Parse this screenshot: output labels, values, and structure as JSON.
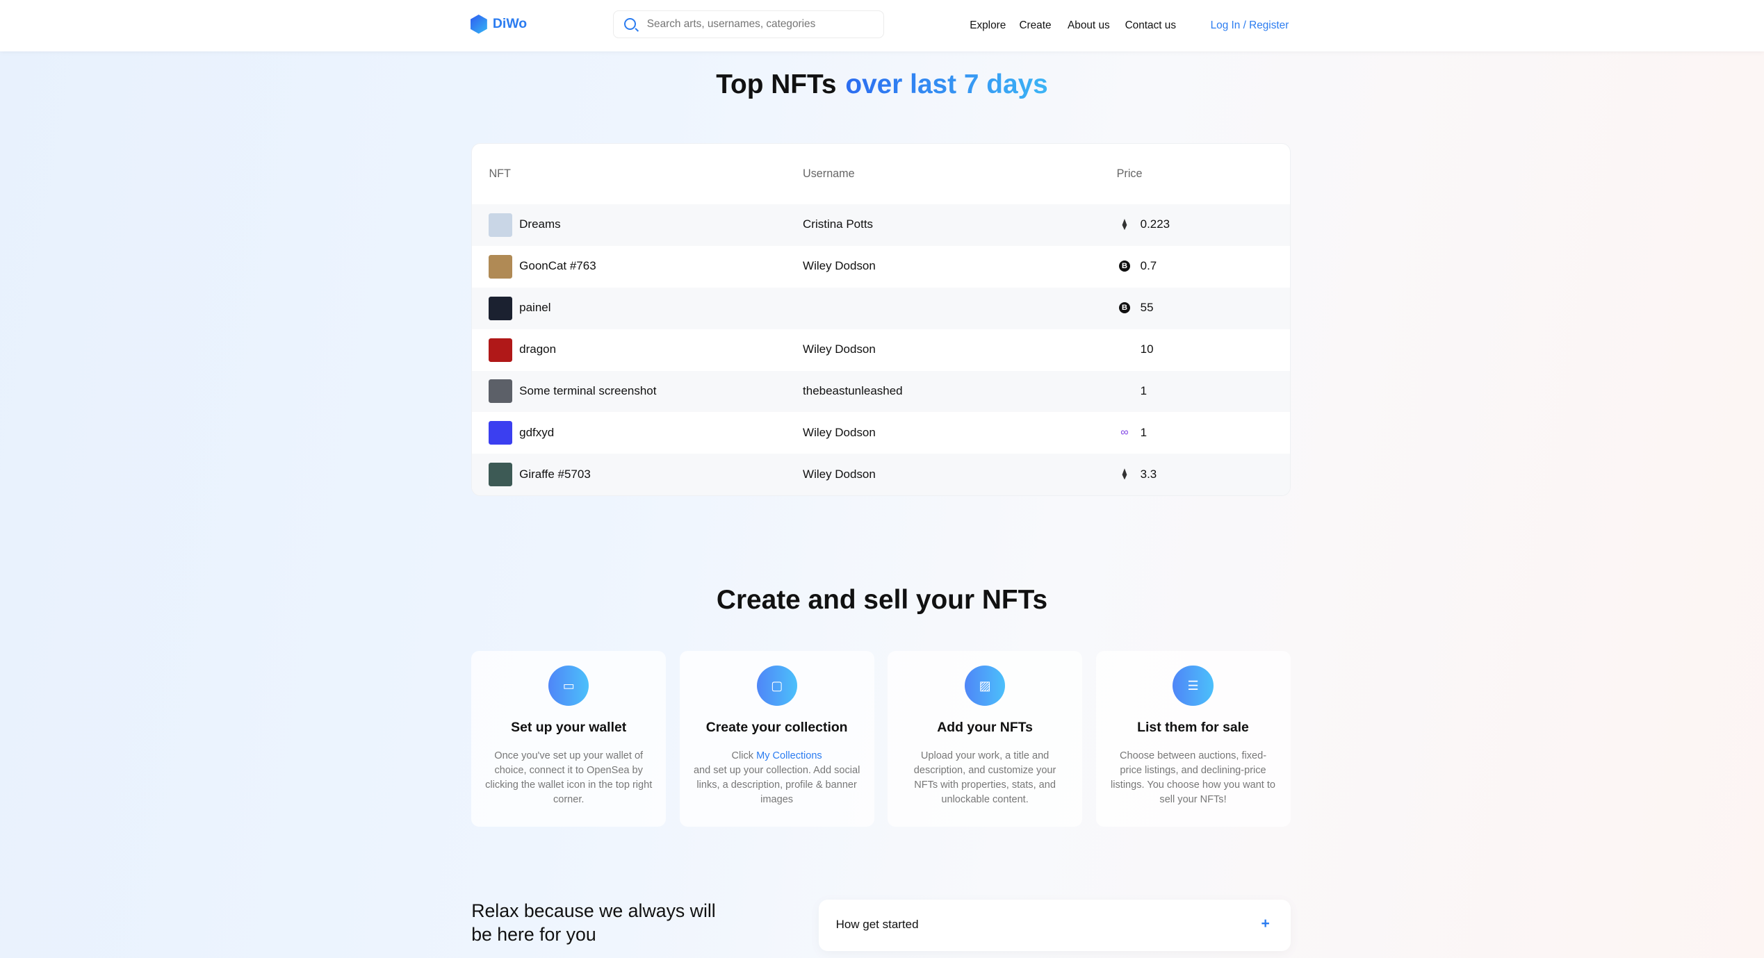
{
  "header": {
    "brand": "DiWo",
    "search_placeholder": "Search arts, usernames, categories",
    "nav": [
      "Explore",
      "Create",
      "About us",
      "Contact us"
    ],
    "login": "Log In / Register"
  },
  "hero": {
    "title": "Top NFTs",
    "highlight": "over last 7 days"
  },
  "table": {
    "columns": [
      "NFT",
      "Username",
      "Price"
    ],
    "rows": [
      {
        "nft": "Dreams",
        "username": "Cristina Potts",
        "price": "0.223",
        "currency": "eth-icon",
        "thumb": "#c9d6e6"
      },
      {
        "nft": "GoonCat #763",
        "username": "Wiley Dodson",
        "price": "0.7",
        "currency": "bitcoin-icon",
        "thumb": "#b08a55"
      },
      {
        "nft": "painel",
        "username": "",
        "price": "55",
        "currency": "bitcoin-icon",
        "thumb": "#1b2130"
      },
      {
        "nft": "dragon",
        "username": "Wiley Dodson",
        "price": "10",
        "currency": "",
        "thumb": "#b01818"
      },
      {
        "nft": "Some terminal screenshot",
        "username": "thebeastunleashed",
        "price": "1",
        "currency": "",
        "thumb": "#5c6068"
      },
      {
        "nft": "gdfxyd",
        "username": "Wiley Dodson",
        "price": "1",
        "currency": "polygon-icon",
        "thumb": "#3b3ff0"
      },
      {
        "nft": "Giraffe #5703",
        "username": "Wiley Dodson",
        "price": "3.3",
        "currency": "eth-icon",
        "thumb": "#3d5a55"
      }
    ]
  },
  "steps": {
    "title": "Create and sell your NFTs",
    "cards": [
      {
        "title": "Set up your wallet",
        "icon": "wallet-icon",
        "desc": "Once you've set up your wallet of choice, connect it to OpenSea by clicking the wallet icon in the top right corner."
      },
      {
        "title": "Create your collection",
        "icon": "collection-icon",
        "pre": "Click ",
        "link": "My Collections",
        "desc": "and set up your collection. Add social links, a description, profile & banner images"
      },
      {
        "title": "Add your NFTs",
        "icon": "image-icon",
        "desc": "Upload your work, a title and description, and customize your NFTs with properties, stats, and unlockable content."
      },
      {
        "title": "List them for sale",
        "icon": "list-icon",
        "desc": "Choose between auctions, fixed-price listings, and declining-price listings. You choose how you want to sell your NFTs!"
      }
    ]
  },
  "faq": {
    "heading": "Relax because we always will be here for you",
    "item": "How get started",
    "toggle": "+"
  }
}
